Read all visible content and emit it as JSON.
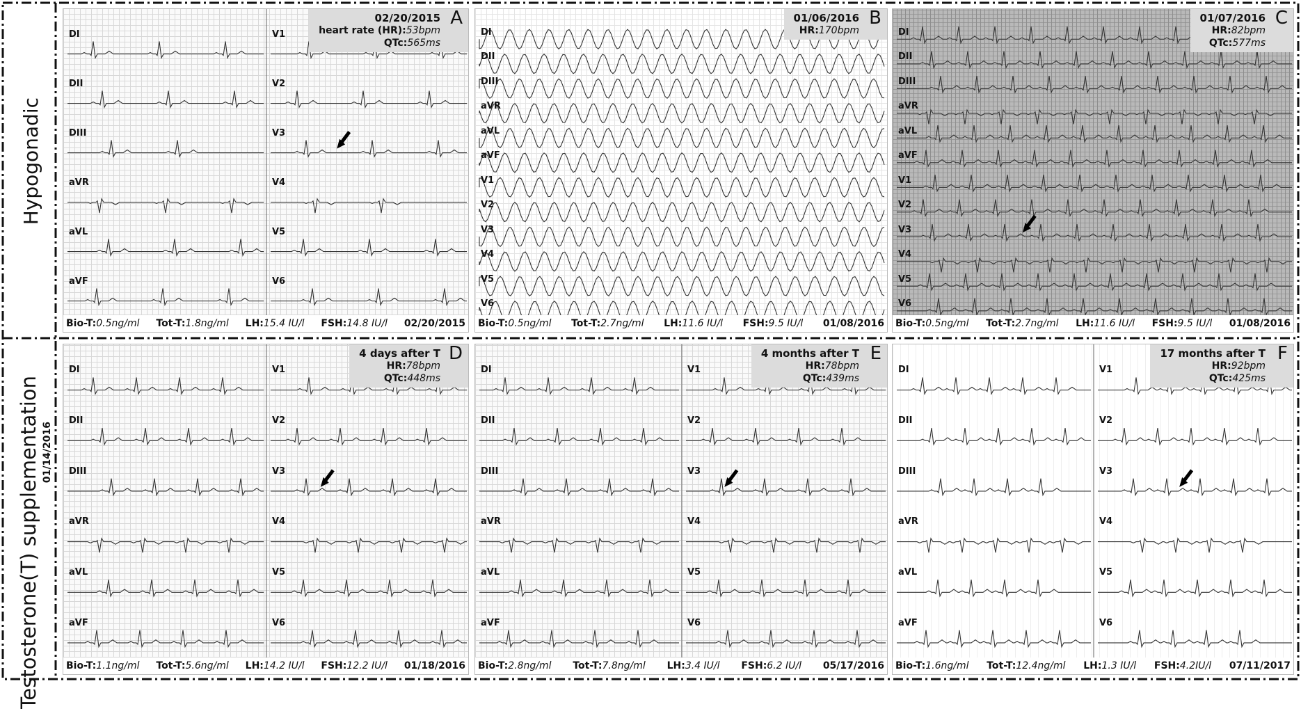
{
  "row_labels": [
    {
      "title": "Hypogonadic"
    },
    {
      "title": "Testosterone(T) supplementation",
      "subtitle": "01/14/2016"
    }
  ],
  "panels": [
    {
      "letter": "A",
      "header": {
        "title": "02/20/2015",
        "hr": {
          "label": "heart rate (HR):",
          "value": "53bpm"
        },
        "qtc": {
          "label": "QTc:",
          "value": "565ms"
        }
      },
      "leads": [
        "DI",
        "DII",
        "DIII",
        "aVR",
        "aVL",
        "aVF",
        "V1",
        "V2",
        "V3",
        "V4",
        "V5",
        "V6"
      ],
      "footer": {
        "items": [
          {
            "label": "Bio-T:",
            "value": "0.5ng/ml"
          },
          {
            "label": "Tot-T:",
            "value": "1.8ng/ml"
          },
          {
            "label": "LH:",
            "value": "15.4 IU/l"
          },
          {
            "label": "FSH:",
            "value": "14.8 IU/l"
          }
        ],
        "date": "02/20/2015"
      }
    },
    {
      "letter": "B",
      "header": {
        "title": "01/06/2016",
        "hr": {
          "label": "HR:",
          "value": "170bpm"
        }
      },
      "leads": [
        "DI",
        "DII",
        "DIII",
        "aVR",
        "aVL",
        "aVF",
        "V1",
        "V2",
        "V3",
        "V4",
        "V5",
        "V6"
      ],
      "footer": {
        "items": [
          {
            "label": "Bio-T:",
            "value": "0.5ng/ml"
          },
          {
            "label": "Tot-T:",
            "value": "2.7ng/ml"
          },
          {
            "label": "LH:",
            "value": "11.6 IU/l"
          },
          {
            "label": "FSH:",
            "value": "9.5 IU/l"
          }
        ],
        "date": "01/08/2016"
      }
    },
    {
      "letter": "C",
      "header": {
        "title": "01/07/2016",
        "hr": {
          "label": "HR:",
          "value": "82bpm"
        },
        "qtc": {
          "label": "QTc:",
          "value": "577ms"
        }
      },
      "leads": [
        "DI",
        "DII",
        "DIII",
        "aVR",
        "aVL",
        "aVF",
        "V1",
        "V2",
        "V3",
        "V4",
        "V5",
        "V6"
      ],
      "footer": {
        "items": [
          {
            "label": "Bio-T:",
            "value": "0.5ng/ml"
          },
          {
            "label": "Tot-T:",
            "value": "2.7ng/ml"
          },
          {
            "label": "LH:",
            "value": "11.6 IU/l"
          },
          {
            "label": "FSH:",
            "value": "9.5 IU/l"
          }
        ],
        "date": "01/08/2016"
      }
    },
    {
      "letter": "D",
      "header": {
        "title": "4 days after T",
        "hr": {
          "label": "HR:",
          "value": "78bpm"
        },
        "qtc": {
          "label": "QTc:",
          "value": "448ms"
        }
      },
      "leads": [
        "DI",
        "DII",
        "DIII",
        "aVR",
        "aVL",
        "aVF",
        "V1",
        "V2",
        "V3",
        "V4",
        "V5",
        "V6"
      ],
      "footer": {
        "items": [
          {
            "label": "Bio-T:",
            "value": "1.1ng/ml"
          },
          {
            "label": "Tot-T:",
            "value": "5.6ng/ml"
          },
          {
            "label": "LH:",
            "value": "14.2 IU/l"
          },
          {
            "label": "FSH:",
            "value": "12.2 IU/l"
          }
        ],
        "date": "01/18/2016"
      }
    },
    {
      "letter": "E",
      "header": {
        "title": "4 months after T",
        "hr": {
          "label": "HR:",
          "value": "78bpm"
        },
        "qtc": {
          "label": "QTc:",
          "value": "439ms"
        }
      },
      "leads": [
        "DI",
        "DII",
        "DIII",
        "aVR",
        "aVL",
        "aVF",
        "V1",
        "V2",
        "V3",
        "V4",
        "V5",
        "V6"
      ],
      "footer": {
        "items": [
          {
            "label": "Bio-T:",
            "value": "2.8ng/ml"
          },
          {
            "label": "Tot-T:",
            "value": "7.8ng/ml"
          },
          {
            "label": "LH:",
            "value": "3.4 IU/l"
          },
          {
            "label": "FSH:",
            "value": "6.2 IU/l"
          }
        ],
        "date": "05/17/2016"
      }
    },
    {
      "letter": "F",
      "header": {
        "title": "17 months after T",
        "hr": {
          "label": "HR:",
          "value": "92bpm"
        },
        "qtc": {
          "label": "QTc:",
          "value": "425ms"
        }
      },
      "leads": [
        "DI",
        "DII",
        "DIII",
        "aVR",
        "aVL",
        "aVF",
        "V1",
        "V2",
        "V3",
        "V4",
        "V5",
        "V6"
      ],
      "footer": {
        "items": [
          {
            "label": "Bio-T:",
            "value": "1.6ng/ml"
          },
          {
            "label": "Tot-T:",
            "value": "12.4ng/ml"
          },
          {
            "label": "LH:",
            "value": "1.3 IU/l"
          },
          {
            "label": "FSH:",
            "value": "4.2IU/l"
          }
        ],
        "date": "07/11/2017"
      }
    }
  ]
}
